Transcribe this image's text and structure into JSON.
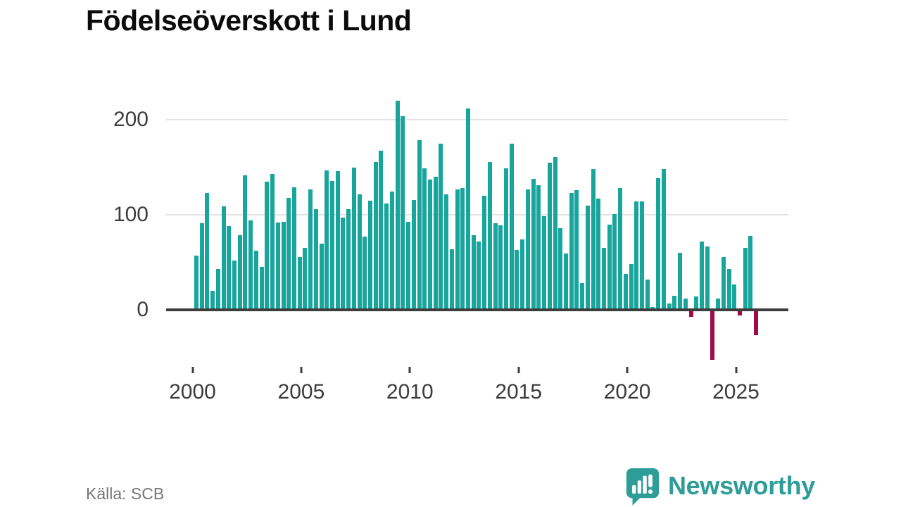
{
  "title": "Födelseöverskott i Lund",
  "source": "Källa: SCB",
  "brand": {
    "name": "Newsworthy",
    "icon": "newsworthy-bubble-chart-icon"
  },
  "colors": {
    "bar_positive": "#17a59c",
    "bar_negative": "#a00d45",
    "axis": "#3d3d3d",
    "grid": "#e2e2e2",
    "title": "#0b0b0b",
    "tick_label": "#3d3d3d",
    "source_text": "#767676",
    "brand_teal": "#2e9d98"
  },
  "chart_data": {
    "type": "bar",
    "title": "Födelseöverskott i Lund",
    "xlabel": "",
    "ylabel": "",
    "x_unit": "quarter",
    "start_year": 2000,
    "frequency": "quarterly",
    "y_ticks": [
      0,
      100,
      200
    ],
    "x_ticks": [
      2000,
      2005,
      2010,
      2015,
      2020,
      2025
    ],
    "ylim": [
      -60,
      230
    ],
    "grid": "horizontal",
    "legend": "none",
    "values": [
      57,
      91,
      123,
      20,
      43,
      109,
      88,
      52,
      79,
      142,
      94,
      62,
      45,
      135,
      143,
      92,
      93,
      118,
      129,
      56,
      65,
      127,
      106,
      70,
      147,
      136,
      146,
      97,
      106,
      150,
      122,
      77,
      115,
      156,
      168,
      112,
      125,
      220,
      204,
      93,
      116,
      179,
      149,
      137,
      140,
      175,
      122,
      64,
      127,
      128,
      212,
      79,
      72,
      120,
      156,
      91,
      89,
      149,
      175,
      63,
      74,
      127,
      138,
      131,
      99,
      155,
      161,
      86,
      59,
      123,
      126,
      28,
      110,
      148,
      117,
      65,
      90,
      101,
      128,
      38,
      48,
      114,
      114,
      32,
      3,
      139,
      148,
      7,
      15,
      60,
      12,
      -7,
      14,
      72,
      67,
      -52,
      12,
      56,
      43,
      27,
      -5,
      65,
      78,
      -26
    ]
  }
}
